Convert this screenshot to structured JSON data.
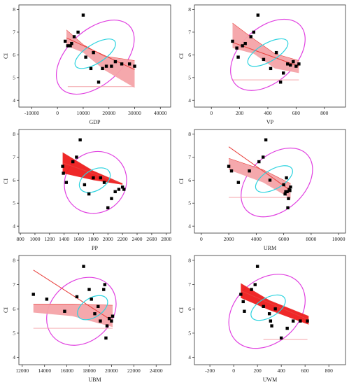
{
  "chart_data": [
    {
      "type": "scatter",
      "xlabel": "GDP",
      "ylabel": "CI",
      "xticks": [
        -10000,
        0,
        10000,
        20000,
        30000,
        40000
      ],
      "xtick_labels": [
        "-10000",
        "0",
        "10000",
        "20000",
        "30000",
        "40000"
      ],
      "yticks": [
        4,
        5,
        6,
        7,
        8
      ],
      "xlim": [
        -15000,
        44000
      ],
      "ylim": [
        3.7,
        8.2
      ],
      "points": [
        [
          3000,
          6.6
        ],
        [
          4000,
          6.4
        ],
        [
          5000,
          6.4
        ],
        [
          5500,
          6.5
        ],
        [
          6500,
          6.8
        ],
        [
          8000,
          7.0
        ],
        [
          10000,
          7.75
        ],
        [
          11000,
          5.9
        ],
        [
          13000,
          5.4
        ],
        [
          14000,
          6.1
        ],
        [
          16000,
          4.8
        ],
        [
          17500,
          5.4
        ],
        [
          19000,
          5.5
        ],
        [
          21000,
          5.5
        ],
        [
          22500,
          5.7
        ],
        [
          25000,
          5.6
        ],
        [
          28000,
          5.6
        ],
        [
          30000,
          5.5
        ]
      ],
      "fit_line": [
        [
          3500,
          6.75
        ],
        [
          30000,
          5.35
        ]
      ],
      "band": {
        "upper": [
          [
            3500,
            7.1
          ],
          [
            10000,
            6.45
          ],
          [
            18000,
            5.95
          ],
          [
            24000,
            5.85
          ],
          [
            30000,
            5.75
          ]
        ],
        "lower": [
          [
            3500,
            6.4
          ],
          [
            10000,
            6.1
          ],
          [
            18000,
            5.35
          ],
          [
            24000,
            4.95
          ],
          [
            30000,
            4.55
          ]
        ],
        "color": "#f4a3a8"
      },
      "ref_line": {
        "x": [
          4000,
          30000
        ],
        "y": 4.6
      },
      "ellipse": {
        "cx": 14700,
        "cy": 5.9,
        "rx": 36000,
        "ry": 1.2,
        "angle": -42
      },
      "conf_ellipse": {
        "cx": 14700,
        "cy": 6.05,
        "rx": 9000,
        "ry": 0.42,
        "angle": -32
      },
      "colors": {
        "points": "#000000",
        "fit": "#e8413d",
        "ellipse": "#e040e0",
        "conf": "#2bd3df"
      }
    },
    {
      "type": "scatter",
      "xlabel": "VP",
      "ylabel": "CI",
      "xticks": [
        0,
        200,
        400,
        600,
        800
      ],
      "xtick_labels": [
        "0",
        "200",
        "400",
        "600",
        "800"
      ],
      "yticks": [
        4,
        5,
        6,
        7,
        8
      ],
      "xlim": [
        -120,
        950
      ],
      "ylim": [
        3.7,
        8.2
      ],
      "points": [
        [
          150,
          6.6
        ],
        [
          180,
          6.3
        ],
        [
          190,
          5.9
        ],
        [
          220,
          6.4
        ],
        [
          240,
          6.5
        ],
        [
          280,
          6.8
        ],
        [
          300,
          7.0
        ],
        [
          330,
          7.75
        ],
        [
          370,
          5.8
        ],
        [
          420,
          5.4
        ],
        [
          460,
          6.1
        ],
        [
          490,
          4.8
        ],
        [
          510,
          5.2
        ],
        [
          540,
          5.6
        ],
        [
          560,
          5.55
        ],
        [
          580,
          5.7
        ],
        [
          600,
          5.5
        ],
        [
          620,
          5.6
        ]
      ],
      "fit_line": [
        [
          150,
          6.55
        ],
        [
          620,
          5.5
        ]
      ],
      "band": {
        "upper": [
          [
            150,
            7.4
          ],
          [
            300,
            6.7
          ],
          [
            450,
            6.05
          ],
          [
            620,
            5.75
          ]
        ],
        "lower": [
          [
            150,
            6.3
          ],
          [
            300,
            6.05
          ],
          [
            450,
            5.4
          ],
          [
            620,
            5.2
          ]
        ],
        "color": "#f4a3a8"
      },
      "ref_line": {
        "x": [
          150,
          620
        ],
        "y": 4.9
      },
      "ellipse": {
        "cx": 400,
        "cy": 6.0,
        "rx": 620,
        "ry": 1.2,
        "angle": -42
      },
      "conf_ellipse": {
        "cx": 400,
        "cy": 6.1,
        "rx": 160,
        "ry": 0.4,
        "angle": -30
      },
      "colors": {
        "points": "#000000",
        "fit": "#e8413d",
        "ellipse": "#e040e0",
        "conf": "#2bd3df"
      }
    },
    {
      "type": "scatter",
      "xlabel": "PP",
      "ylabel": "CI",
      "xticks": [
        800,
        1000,
        1200,
        1400,
        1600,
        1800,
        2000,
        2200,
        2400,
        2600,
        2800
      ],
      "xtick_labels": [
        "800",
        "1000",
        "1200",
        "1400",
        "1600",
        "1800",
        "2000",
        "2200",
        "2400",
        "2600",
        "2800"
      ],
      "yticks": [
        4,
        5,
        6,
        7,
        8
      ],
      "xlim": [
        780,
        2860
      ],
      "ylim": [
        3.7,
        8.2
      ],
      "points": [
        [
          1380,
          6.6
        ],
        [
          1390,
          6.3
        ],
        [
          1430,
          5.9
        ],
        [
          1520,
          6.8
        ],
        [
          1570,
          7.0
        ],
        [
          1620,
          7.75
        ],
        [
          1680,
          5.8
        ],
        [
          1740,
          5.4
        ],
        [
          1800,
          6.1
        ],
        [
          1900,
          6.1
        ],
        [
          1950,
          5.9
        ],
        [
          2000,
          4.8
        ],
        [
          2050,
          5.2
        ],
        [
          2100,
          5.5
        ],
        [
          2150,
          5.6
        ],
        [
          2200,
          5.7
        ],
        [
          2220,
          5.6
        ]
      ],
      "fit_line": [
        [
          1380,
          6.75
        ],
        [
          2200,
          5.85
        ]
      ],
      "band": {
        "upper": [
          [
            1380,
            7.2
          ],
          [
            1800,
            6.4
          ],
          [
            2200,
            5.85
          ]
        ],
        "lower": [
          [
            1380,
            6.3
          ],
          [
            1800,
            6.0
          ],
          [
            2200,
            5.8
          ]
        ],
        "color": "#ee1c1c"
      },
      "ref_line": null,
      "ellipse": {
        "cx": 1830,
        "cy": 5.9,
        "rx": 880,
        "ry": 1.3,
        "angle": -42
      },
      "conf_ellipse": {
        "cx": 1820,
        "cy": 6.0,
        "rx": 230,
        "ry": 0.45,
        "angle": -30
      },
      "colors": {
        "points": "#000000",
        "fit": "#e8413d",
        "ellipse": "#e040e0",
        "conf": "#2bd3df"
      }
    },
    {
      "type": "scatter",
      "xlabel": "URM",
      "ylabel": "CI",
      "xticks": [
        0,
        2000,
        4000,
        6000,
        8000,
        10000
      ],
      "xtick_labels": [
        "0",
        "2000",
        "4000",
        "6000",
        "8000",
        "10000"
      ],
      "yticks": [
        4,
        5,
        6,
        7,
        8
      ],
      "xlim": [
        -500,
        10500
      ],
      "ylim": [
        3.7,
        8.2
      ],
      "points": [
        [
          2000,
          6.6
        ],
        [
          2200,
          6.4
        ],
        [
          2700,
          5.9
        ],
        [
          3500,
          6.4
        ],
        [
          4200,
          6.8
        ],
        [
          4500,
          7.0
        ],
        [
          4700,
          7.75
        ],
        [
          5000,
          6.0
        ],
        [
          6000,
          5.8
        ],
        [
          6100,
          5.4
        ],
        [
          6150,
          5.5
        ],
        [
          6200,
          6.1
        ],
        [
          6250,
          5.5
        ],
        [
          6300,
          4.8
        ],
        [
          6350,
          5.2
        ],
        [
          6400,
          5.6
        ],
        [
          6450,
          5.55
        ],
        [
          6500,
          5.7
        ]
      ],
      "fit_line": [
        [
          2000,
          7.45
        ],
        [
          6500,
          5.55
        ]
      ],
      "band": {
        "upper": [
          [
            2000,
            6.95
          ],
          [
            4500,
            6.45
          ],
          [
            6500,
            5.85
          ]
        ],
        "lower": [
          [
            2000,
            6.45
          ],
          [
            4500,
            5.9
          ],
          [
            6500,
            5.2
          ]
        ],
        "color": "#f4a3a8"
      },
      "ref_line": {
        "x": [
          2000,
          6500
        ],
        "y": 5.25
      },
      "ellipse": {
        "cx": 5500,
        "cy": 5.9,
        "rx": 6000,
        "ry": 1.2,
        "angle": -42
      },
      "conf_ellipse": {
        "cx": 5300,
        "cy": 6.05,
        "rx": 1500,
        "ry": 0.42,
        "angle": -30
      },
      "colors": {
        "points": "#000000",
        "fit": "#e8413d",
        "ellipse": "#e040e0",
        "conf": "#2bd3df"
      }
    },
    {
      "type": "scatter",
      "xlabel": "UBM",
      "ylabel": "CI",
      "xticks": [
        12000,
        14000,
        16000,
        18000,
        20000,
        22000,
        24000
      ],
      "xtick_labels": [
        "12000",
        "14000",
        "16000",
        "18000",
        "20000",
        "22000",
        "24000"
      ],
      "yticks": [
        4,
        5,
        6,
        7,
        8
      ],
      "xlim": [
        11700,
        25300
      ],
      "ylim": [
        3.7,
        8.2
      ],
      "points": [
        [
          13000,
          6.6
        ],
        [
          14200,
          6.4
        ],
        [
          15800,
          5.9
        ],
        [
          16900,
          6.5
        ],
        [
          17500,
          7.75
        ],
        [
          18000,
          6.8
        ],
        [
          18200,
          6.4
        ],
        [
          18500,
          5.8
        ],
        [
          18800,
          6.1
        ],
        [
          19000,
          5.5
        ],
        [
          19300,
          6.8
        ],
        [
          19400,
          7.0
        ],
        [
          19500,
          4.8
        ],
        [
          19600,
          5.3
        ],
        [
          19800,
          5.6
        ],
        [
          20000,
          5.5
        ],
        [
          20100,
          5.7
        ]
      ],
      "fit_line": [
        [
          13000,
          7.6
        ],
        [
          20100,
          5.5
        ]
      ],
      "band": {
        "upper": [
          [
            13000,
            6.2
          ],
          [
            16500,
            6.2
          ],
          [
            20100,
            6.15
          ]
        ],
        "lower": [
          [
            13000,
            5.85
          ],
          [
            16500,
            5.7
          ],
          [
            20100,
            5.25
          ]
        ],
        "color": "#f4a3a8"
      },
      "ref_line": {
        "x": [
          13000,
          20100
        ],
        "y": 5.2
      },
      "ellipse": {
        "cx": 17300,
        "cy": 5.9,
        "rx": 6800,
        "ry": 1.25,
        "angle": -42
      },
      "conf_ellipse": {
        "cx": 18300,
        "cy": 6.05,
        "rx": 1500,
        "ry": 0.4,
        "angle": -32
      },
      "colors": {
        "points": "#000000",
        "fit": "#e8413d",
        "ellipse": "#e040e0",
        "conf": "#2bd3df"
      }
    },
    {
      "type": "scatter",
      "xlabel": "UWM",
      "ylabel": "CI",
      "xticks": [
        -200,
        0,
        200,
        400,
        600,
        800
      ],
      "xtick_labels": [
        "-200",
        "0",
        "200",
        "400",
        "600",
        "800"
      ],
      "yticks": [
        4,
        5,
        6,
        7,
        8
      ],
      "xlim": [
        -330,
        940
      ],
      "ylim": [
        3.7,
        8.2
      ],
      "points": [
        [
          60,
          6.6
        ],
        [
          80,
          6.3
        ],
        [
          90,
          5.9
        ],
        [
          150,
          6.8
        ],
        [
          180,
          7.0
        ],
        [
          200,
          7.75
        ],
        [
          250,
          6.1
        ],
        [
          300,
          5.8
        ],
        [
          310,
          5.5
        ],
        [
          320,
          5.3
        ],
        [
          350,
          6.0
        ],
        [
          400,
          4.8
        ],
        [
          450,
          5.2
        ],
        [
          500,
          5.5
        ],
        [
          560,
          5.5
        ],
        [
          620,
          5.5
        ]
      ],
      "fit_line": [
        [
          60,
          6.75
        ],
        [
          630,
          5.55
        ]
      ],
      "band": {
        "upper": [
          [
            60,
            7.05
          ],
          [
            300,
            6.35
          ],
          [
            630,
            5.7
          ]
        ],
        "lower": [
          [
            60,
            6.45
          ],
          [
            300,
            5.95
          ],
          [
            630,
            5.35
          ]
        ],
        "color": "#ee1c1c"
      },
      "ref_line": {
        "x": [
          250,
          620
        ],
        "y": 4.75
      },
      "ellipse": {
        "cx": 280,
        "cy": 5.9,
        "rx": 720,
        "ry": 1.3,
        "angle": -42
      },
      "conf_ellipse": {
        "cx": 290,
        "cy": 6.05,
        "rx": 160,
        "ry": 0.4,
        "angle": -30
      },
      "colors": {
        "points": "#000000",
        "fit": "#e8413d",
        "ellipse": "#e040e0",
        "conf": "#2bd3df"
      }
    }
  ]
}
